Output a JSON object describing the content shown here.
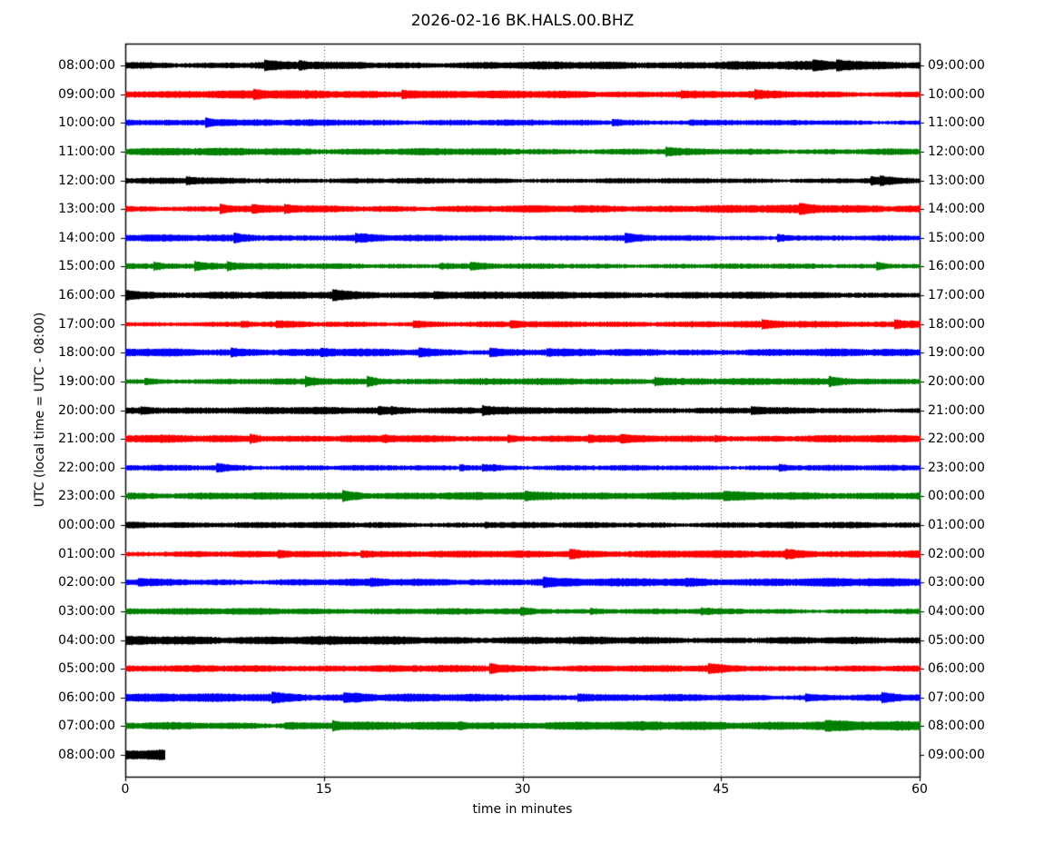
{
  "chart_data": {
    "type": "line",
    "subtype": "helicorder-dayplot",
    "title": "2026-02-16 BK.HALS.00.BHZ",
    "xlabel": "time in minutes",
    "ylabel": "UTC (local time = UTC - 08:00)",
    "xlim": [
      0,
      60
    ],
    "x_ticks": [
      0,
      15,
      30,
      45,
      60
    ],
    "grid": {
      "vertical_minutes": [
        15,
        30,
        45
      ],
      "style": "dotted",
      "color": "#000000"
    },
    "color_cycle": [
      "#000000",
      "#ff0000",
      "#0000ff",
      "#008000"
    ],
    "background": "#ffffff",
    "rows": [
      {
        "start": "08:00:00",
        "end": "09:00:00",
        "color": "#000000",
        "duration_minutes": 60
      },
      {
        "start": "09:00:00",
        "end": "10:00:00",
        "color": "#ff0000",
        "duration_minutes": 60
      },
      {
        "start": "10:00:00",
        "end": "11:00:00",
        "color": "#0000ff",
        "duration_minutes": 60
      },
      {
        "start": "11:00:00",
        "end": "12:00:00",
        "color": "#008000",
        "duration_minutes": 60
      },
      {
        "start": "12:00:00",
        "end": "13:00:00",
        "color": "#000000",
        "duration_minutes": 60
      },
      {
        "start": "13:00:00",
        "end": "14:00:00",
        "color": "#ff0000",
        "duration_minutes": 60
      },
      {
        "start": "14:00:00",
        "end": "15:00:00",
        "color": "#0000ff",
        "duration_minutes": 60
      },
      {
        "start": "15:00:00",
        "end": "16:00:00",
        "color": "#008000",
        "duration_minutes": 60
      },
      {
        "start": "16:00:00",
        "end": "17:00:00",
        "color": "#000000",
        "duration_minutes": 60
      },
      {
        "start": "17:00:00",
        "end": "18:00:00",
        "color": "#ff0000",
        "duration_minutes": 60
      },
      {
        "start": "18:00:00",
        "end": "19:00:00",
        "color": "#0000ff",
        "duration_minutes": 60
      },
      {
        "start": "19:00:00",
        "end": "20:00:00",
        "color": "#008000",
        "duration_minutes": 60
      },
      {
        "start": "20:00:00",
        "end": "21:00:00",
        "color": "#000000",
        "duration_minutes": 60
      },
      {
        "start": "21:00:00",
        "end": "22:00:00",
        "color": "#ff0000",
        "duration_minutes": 60
      },
      {
        "start": "22:00:00",
        "end": "23:00:00",
        "color": "#0000ff",
        "duration_minutes": 60
      },
      {
        "start": "23:00:00",
        "end": "00:00:00",
        "color": "#008000",
        "duration_minutes": 60
      },
      {
        "start": "00:00:00",
        "end": "01:00:00",
        "color": "#000000",
        "duration_minutes": 60
      },
      {
        "start": "01:00:00",
        "end": "02:00:00",
        "color": "#ff0000",
        "duration_minutes": 60
      },
      {
        "start": "02:00:00",
        "end": "03:00:00",
        "color": "#0000ff",
        "duration_minutes": 60
      },
      {
        "start": "03:00:00",
        "end": "04:00:00",
        "color": "#008000",
        "duration_minutes": 60
      },
      {
        "start": "04:00:00",
        "end": "05:00:00",
        "color": "#000000",
        "duration_minutes": 60
      },
      {
        "start": "05:00:00",
        "end": "06:00:00",
        "color": "#ff0000",
        "duration_minutes": 60
      },
      {
        "start": "06:00:00",
        "end": "07:00:00",
        "color": "#0000ff",
        "duration_minutes": 60
      },
      {
        "start": "07:00:00",
        "end": "08:00:00",
        "color": "#008000",
        "duration_minutes": 60
      },
      {
        "start": "08:00:00",
        "end": "09:00:00",
        "color": "#000000",
        "duration_minutes": 3
      }
    ]
  }
}
